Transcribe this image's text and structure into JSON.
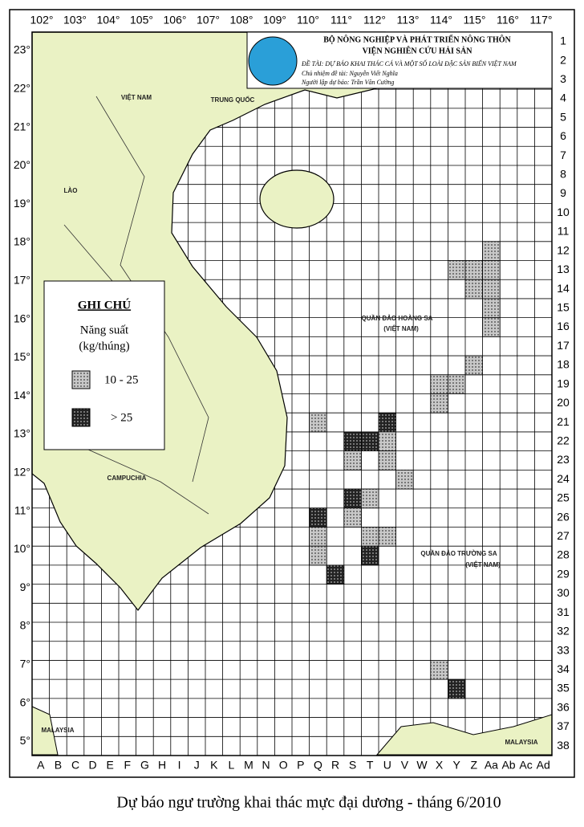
{
  "header": {
    "ministry": "BỘ NÔNG NGHIỆP VÀ PHÁT TRIỂN NÔNG THÔN",
    "institute": "VIỆN NGHIÊN CỨU HẢI SẢN",
    "project": "ĐỀ TÀI: DỰ BÁO KHAI THÁC CÁ VÀ MỘT SỐ LOÀI ĐẶC SẢN BIỂN VIỆT NAM",
    "leader": "Chủ nhiệm đề tài: Nguyễn Viết Nghĩa",
    "forecaster": "Người lập dự báo: Trần Văn Cường"
  },
  "longitudes": [
    "102°",
    "103°",
    "104°",
    "105°",
    "106°",
    "107°",
    "108°",
    "109°",
    "110°",
    "111°",
    "112°",
    "113°",
    "114°",
    "115°",
    "116°",
    "117°"
  ],
  "latitudes": [
    "23°",
    "22°",
    "21°",
    "20°",
    "19°",
    "18°",
    "17°",
    "16°",
    "15°",
    "14°",
    "13°",
    "12°",
    "11°",
    "10°",
    "9°",
    "8°",
    "7°",
    "6°",
    "5°"
  ],
  "rows": [
    "1",
    "2",
    "3",
    "4",
    "5",
    "6",
    "7",
    "8",
    "9",
    "10",
    "11",
    "12",
    "13",
    "14",
    "15",
    "16",
    "17",
    "18",
    "19",
    "20",
    "21",
    "22",
    "23",
    "24",
    "25",
    "26",
    "27",
    "28",
    "29",
    "30",
    "31",
    "32",
    "33",
    "34",
    "35",
    "36",
    "37",
    "38"
  ],
  "columns": [
    "A",
    "B",
    "C",
    "D",
    "E",
    "F",
    "G",
    "H",
    "I",
    "J",
    "K",
    "L",
    "M",
    "N",
    "O",
    "P",
    "Q",
    "R",
    "S",
    "T",
    "U",
    "V",
    "W",
    "X",
    "Y",
    "Z",
    "Aa",
    "Ab",
    "Ac",
    "Ad"
  ],
  "legend": {
    "title": "GHI CHÚ",
    "measure": "Năng suất",
    "unit": "(kg/thúng)",
    "items": [
      "10 - 25",
      "> 25"
    ]
  },
  "places": [
    "VIỆT NAM",
    "LÀO",
    "CAMPUCHIA",
    "TRUNG QUỐC",
    "QUẦN ĐẢO HOÀNG SA",
    "(VIỆT NAM)",
    "QUẦN ĐẢO TRƯỜNG SA",
    "(VIỆT NAM)",
    "MALAYSIA",
    "MALAYSIA"
  ],
  "caption": "Dự báo ngư trường khai thác mực đại dương - tháng 6/2010"
}
